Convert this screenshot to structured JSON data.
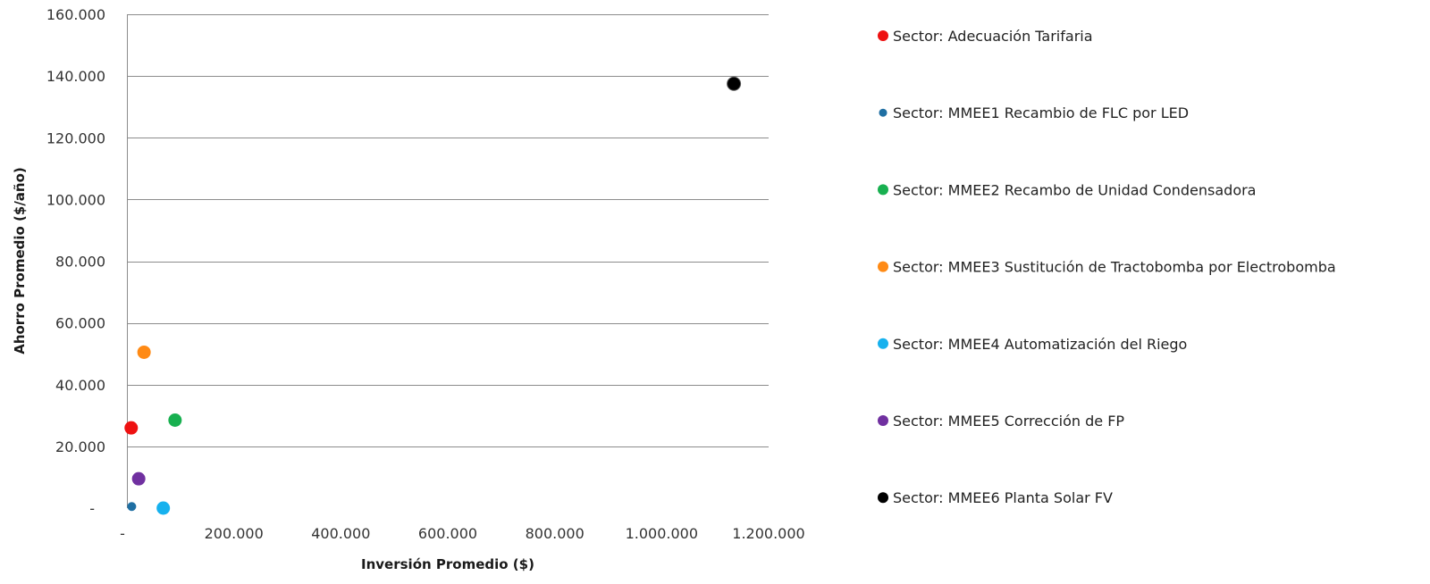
{
  "chart_data": {
    "type": "scatter",
    "title": "",
    "xlabel": "Inversión Promedio ($)",
    "ylabel": "Ahorro Promedio ($/año)",
    "xlim": [
      0,
      1200000
    ],
    "ylim": [
      0,
      160000
    ],
    "x_ticks": [
      {
        "value": 0,
        "label": "-"
      },
      {
        "value": 200000,
        "label": "200.000"
      },
      {
        "value": 400000,
        "label": "400.000"
      },
      {
        "value": 600000,
        "label": "600.000"
      },
      {
        "value": 800000,
        "label": "800.000"
      },
      {
        "value": 1000000,
        "label": "1.000.000"
      },
      {
        "value": 1200000,
        "label": "1.200.000"
      }
    ],
    "y_ticks": [
      {
        "value": 0,
        "label": "-"
      },
      {
        "value": 20000,
        "label": "20.000"
      },
      {
        "value": 40000,
        "label": "40.000"
      },
      {
        "value": 60000,
        "label": "60.000"
      },
      {
        "value": 80000,
        "label": "80.000"
      },
      {
        "value": 100000,
        "label": "100.000"
      },
      {
        "value": 120000,
        "label": "120.000"
      },
      {
        "value": 140000,
        "label": "140.000"
      },
      {
        "value": 160000,
        "label": "160.000"
      }
    ],
    "grid": {
      "horizontal": true,
      "vertical": false
    },
    "legend_position": "right",
    "series": [
      {
        "name": "Sector: Adecuación Tarifaria",
        "color": "#ee1111",
        "points": [
          {
            "x": 8000,
            "y": 26000
          }
        ]
      },
      {
        "name": "Sector: MMEE1 Recambio de FLC por LED",
        "color": "#1f6fa3",
        "points": [
          {
            "x": 9000,
            "y": 500
          }
        ]
      },
      {
        "name": "Sector: MMEE2 Recambo de Unidad Condensadora",
        "color": "#18b050",
        "points": [
          {
            "x": 90000,
            "y": 28500
          }
        ]
      },
      {
        "name": "Sector: MMEE3 Sustitución de Tractobomba por Electrobomba",
        "color": "#ff8a14",
        "points": [
          {
            "x": 32000,
            "y": 50500
          }
        ]
      },
      {
        "name": "Sector: MMEE4 Automatización del Riego",
        "color": "#16b1ee",
        "points": [
          {
            "x": 68000,
            "y": 0
          }
        ]
      },
      {
        "name": "Sector: MMEE5 Corrección de FP",
        "color": "#7030a0",
        "points": [
          {
            "x": 22000,
            "y": 9500
          }
        ]
      },
      {
        "name": "Sector: MMEE6 Planta Solar FV",
        "color": "#000000",
        "points": [
          {
            "x": 1135000,
            "y": 137500
          }
        ]
      }
    ]
  }
}
